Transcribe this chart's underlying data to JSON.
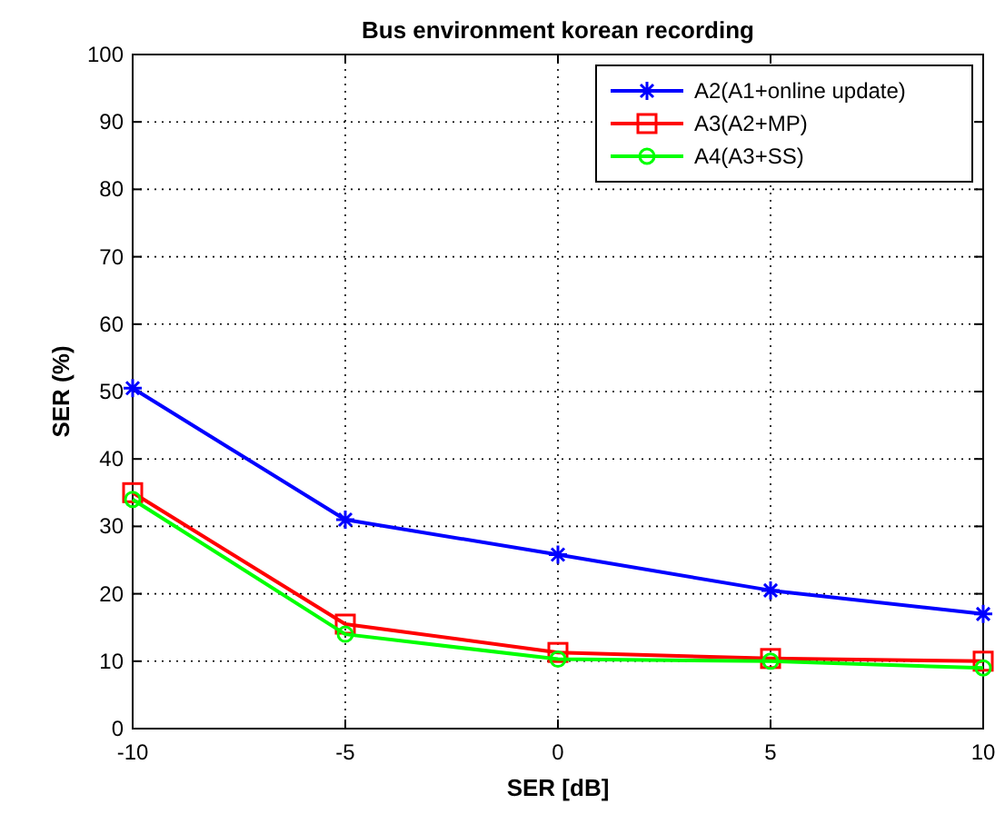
{
  "chart_data": {
    "type": "line",
    "title": "Bus environment korean recording",
    "xlabel": "SER [dB]",
    "ylabel": "SER (%)",
    "x": [
      -10,
      -5,
      0,
      5,
      10
    ],
    "series": [
      {
        "name": "A2(A1+online update)",
        "color": "#0000ff",
        "marker": "cross",
        "values": [
          50.5,
          31,
          25.8,
          20.5,
          17
        ]
      },
      {
        "name": "A3(A2+MP)",
        "color": "#ff0000",
        "marker": "square",
        "values": [
          35,
          15.5,
          11.3,
          10.4,
          10
        ]
      },
      {
        "name": "A4(A3+SS)",
        "color": "#00ff00",
        "marker": "circle",
        "values": [
          34,
          14,
          10.3,
          10,
          9
        ]
      }
    ],
    "xlim": [
      -10,
      10
    ],
    "xticks": [
      -10,
      -5,
      0,
      5,
      10
    ],
    "ylim": [
      0,
      100
    ],
    "yticks": [
      0,
      10,
      20,
      30,
      40,
      50,
      60,
      70,
      80,
      90,
      100
    ],
    "grid": true,
    "legend": "top right",
    "line_style": "solid"
  }
}
